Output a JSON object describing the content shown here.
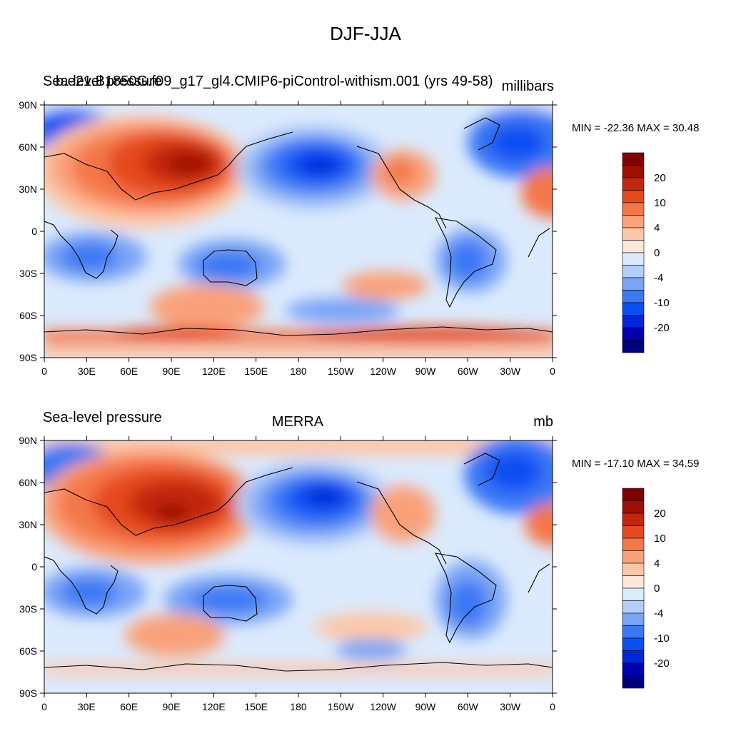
{
  "figure_title": "DJF-JJA",
  "colors": {
    "levels": [
      "#000080",
      "#0000b0",
      "#0026d9",
      "#0a4ff2",
      "#3b78f5",
      "#7aa5f5",
      "#b3cef8",
      "#dbeafd",
      "#ffe8d9",
      "#fcc7a8",
      "#f9a27a",
      "#f4774a",
      "#e54a1f",
      "#c2260e",
      "#9c0f02",
      "#800000"
    ],
    "boundaries": [
      -30,
      -20,
      -15,
      -10,
      -7,
      -4,
      -2,
      0,
      2,
      4,
      7,
      10,
      15,
      20,
      25
    ],
    "coast": "#000000"
  },
  "panels": [
    {
      "case": "b.e21.B1850G.f09_g17_gl4.CMIP6-piControl-withism.001 (yrs 49-58)",
      "left": "Sea-level pressure",
      "units": "millibars",
      "min_max": "MIN = -22.36 MAX =  30.48"
    },
    {
      "case": "MERRA",
      "left": "Sea-level pressure",
      "units": "mb",
      "min_max": "MIN = -17.10 MAX =  34.59"
    }
  ],
  "colorbar_labels": [
    "20",
    "10",
    "4",
    "0",
    "-4",
    "-10",
    "-20"
  ],
  "lat_labels": [
    "90N",
    "60N",
    "30N",
    "0",
    "30S",
    "60S",
    "90S"
  ],
  "lon_labels": [
    "0",
    "30E",
    "60E",
    "90E",
    "120E",
    "150E",
    "180",
    "150W",
    "120W",
    "90W",
    "60W",
    "30W",
    "0"
  ],
  "icon_names": [
    "coastline-icon",
    "anomaly-contour-icon"
  ]
}
